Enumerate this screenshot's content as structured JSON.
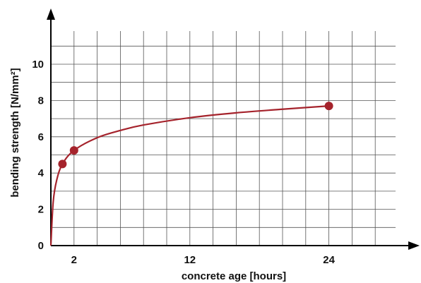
{
  "chart_data": {
    "type": "line",
    "xlabel": "concrete age [hours]",
    "ylabel": "bending strength [N/mm²]",
    "xlim": [
      0,
      29
    ],
    "ylim": [
      0,
      11.5
    ],
    "x_ticks": [
      2,
      12,
      24
    ],
    "y_ticks": [
      0,
      2,
      4,
      6,
      8,
      10
    ],
    "grid": true,
    "series": [
      {
        "color": "#a5232c",
        "curve": [
          {
            "x": 0,
            "y": 0
          },
          {
            "x": 0.2,
            "y": 2.4
          },
          {
            "x": 0.5,
            "y": 3.6
          },
          {
            "x": 1,
            "y": 4.5
          },
          {
            "x": 2,
            "y": 5.25
          },
          {
            "x": 4,
            "y": 5.95
          },
          {
            "x": 6,
            "y": 6.35
          },
          {
            "x": 8,
            "y": 6.65
          },
          {
            "x": 12,
            "y": 7.05
          },
          {
            "x": 16,
            "y": 7.32
          },
          {
            "x": 20,
            "y": 7.52
          },
          {
            "x": 24,
            "y": 7.7
          }
        ],
        "points": [
          {
            "x": 1,
            "y": 4.5
          },
          {
            "x": 2,
            "y": 5.25
          },
          {
            "x": 24,
            "y": 7.7
          }
        ]
      }
    ]
  }
}
